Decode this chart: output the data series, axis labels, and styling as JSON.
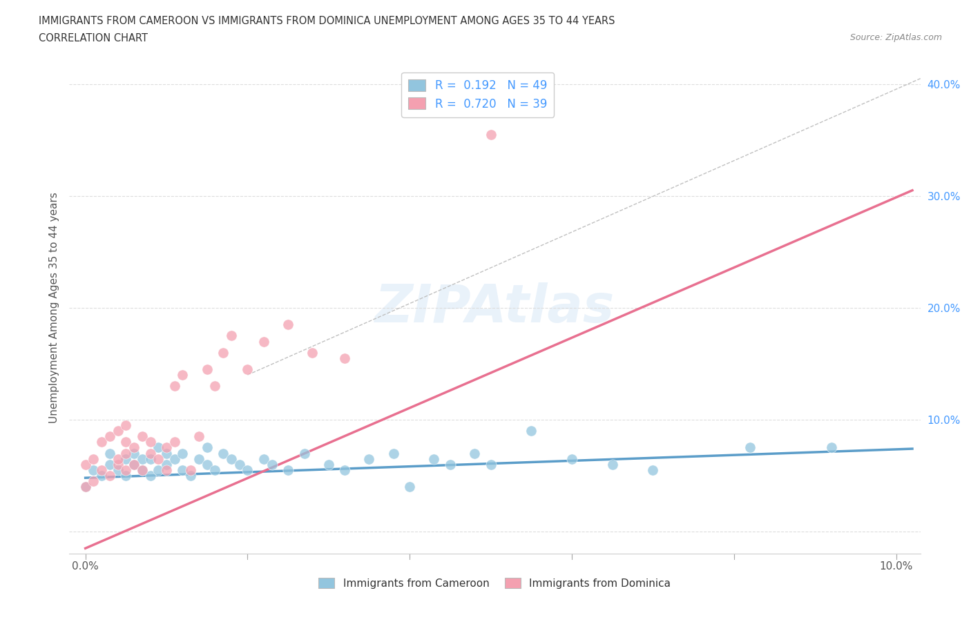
{
  "title_line1": "IMMIGRANTS FROM CAMEROON VS IMMIGRANTS FROM DOMINICA UNEMPLOYMENT AMONG AGES 35 TO 44 YEARS",
  "title_line2": "CORRELATION CHART",
  "source_text": "Source: ZipAtlas.com",
  "watermark_text": "ZIPAtlas",
  "ylabel": "Unemployment Among Ages 35 to 44 years",
  "xlim": [
    -0.002,
    0.103
  ],
  "ylim": [
    -0.02,
    0.42
  ],
  "xticks": [
    0.0,
    0.02,
    0.04,
    0.06,
    0.08,
    0.1
  ],
  "xtick_labels": [
    "0.0%",
    "",
    "",
    "",
    "",
    ""
  ],
  "yticks": [
    0.0,
    0.1,
    0.2,
    0.3,
    0.4
  ],
  "ytick_labels": [
    "",
    "10.0%",
    "20.0%",
    "30.0%",
    "40.0%"
  ],
  "color_cameroon": "#92C5DE",
  "color_dominica": "#F4A0B0",
  "line_color_cameroon": "#5B9DC9",
  "line_color_dominica": "#E87090",
  "line_color_dashed": "#C0C0C0",
  "cameroon_scatter_x": [
    0.0,
    0.001,
    0.002,
    0.003,
    0.003,
    0.004,
    0.005,
    0.005,
    0.006,
    0.006,
    0.007,
    0.007,
    0.008,
    0.008,
    0.009,
    0.009,
    0.01,
    0.01,
    0.011,
    0.012,
    0.012,
    0.013,
    0.014,
    0.015,
    0.015,
    0.016,
    0.017,
    0.018,
    0.019,
    0.02,
    0.022,
    0.023,
    0.025,
    0.027,
    0.03,
    0.032,
    0.035,
    0.038,
    0.04,
    0.043,
    0.045,
    0.048,
    0.05,
    0.055,
    0.06,
    0.065,
    0.07,
    0.082,
    0.092
  ],
  "cameroon_scatter_y": [
    0.04,
    0.055,
    0.05,
    0.06,
    0.07,
    0.055,
    0.05,
    0.065,
    0.06,
    0.07,
    0.055,
    0.065,
    0.05,
    0.065,
    0.055,
    0.075,
    0.06,
    0.07,
    0.065,
    0.055,
    0.07,
    0.05,
    0.065,
    0.06,
    0.075,
    0.055,
    0.07,
    0.065,
    0.06,
    0.055,
    0.065,
    0.06,
    0.055,
    0.07,
    0.06,
    0.055,
    0.065,
    0.07,
    0.04,
    0.065,
    0.06,
    0.07,
    0.06,
    0.09,
    0.065,
    0.06,
    0.055,
    0.075,
    0.075
  ],
  "dominica_scatter_x": [
    0.0,
    0.0,
    0.001,
    0.001,
    0.002,
    0.002,
    0.003,
    0.003,
    0.004,
    0.004,
    0.004,
    0.005,
    0.005,
    0.005,
    0.005,
    0.006,
    0.006,
    0.007,
    0.007,
    0.008,
    0.008,
    0.009,
    0.01,
    0.01,
    0.011,
    0.011,
    0.012,
    0.013,
    0.014,
    0.015,
    0.016,
    0.017,
    0.018,
    0.02,
    0.022,
    0.025,
    0.028,
    0.032,
    0.05
  ],
  "dominica_scatter_y": [
    0.04,
    0.06,
    0.045,
    0.065,
    0.055,
    0.08,
    0.05,
    0.085,
    0.06,
    0.065,
    0.09,
    0.055,
    0.07,
    0.08,
    0.095,
    0.06,
    0.075,
    0.055,
    0.085,
    0.07,
    0.08,
    0.065,
    0.055,
    0.075,
    0.08,
    0.13,
    0.14,
    0.055,
    0.085,
    0.145,
    0.13,
    0.16,
    0.175,
    0.145,
    0.17,
    0.185,
    0.16,
    0.155,
    0.355
  ],
  "cameroon_trend_x": [
    0.0,
    0.102
  ],
  "cameroon_trend_y": [
    0.048,
    0.074
  ],
  "dominica_trend_x": [
    0.0,
    0.102
  ],
  "dominica_trend_y": [
    -0.015,
    0.305
  ],
  "dashed_trend_x": [
    0.02,
    0.103
  ],
  "dashed_trend_y": [
    0.14,
    0.405
  ],
  "legend_labels": [
    "Immigrants from Cameroon",
    "Immigrants from Dominica"
  ],
  "background_color": "#FFFFFF",
  "grid_color": "#DDDDDD",
  "tick_color_right": "#4499FF",
  "tick_color_bottom": "#555555"
}
